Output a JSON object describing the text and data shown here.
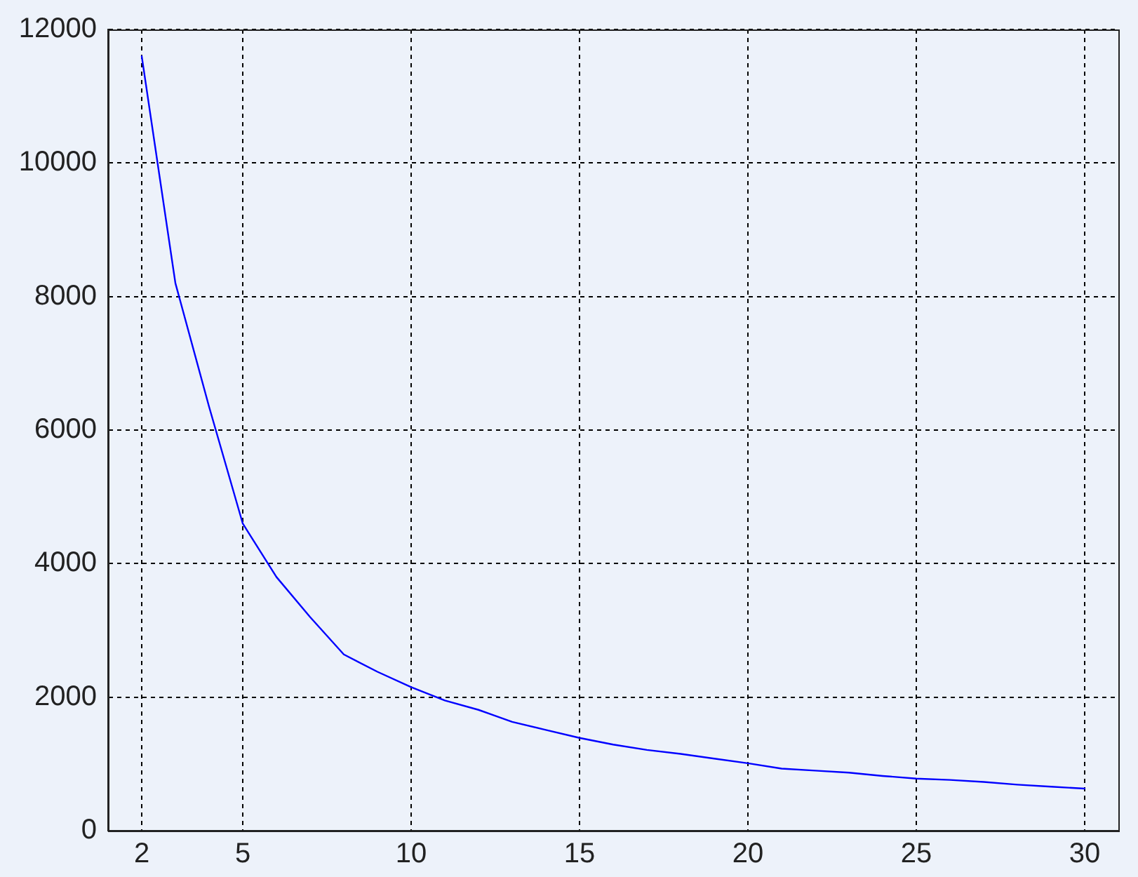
{
  "chart_data": {
    "type": "line",
    "x": [
      2,
      3,
      4,
      5,
      6,
      7,
      8,
      9,
      10,
      11,
      12,
      13,
      14,
      15,
      16,
      17,
      18,
      19,
      20,
      21,
      22,
      23,
      24,
      25,
      26,
      27,
      28,
      29,
      30
    ],
    "series": [
      {
        "color": "#0000ff",
        "values": [
          11600,
          8200,
          6350,
          4600,
          3800,
          3200,
          2640,
          2380,
          2150,
          1950,
          1810,
          1630,
          1510,
          1390,
          1290,
          1210,
          1150,
          1080,
          1010,
          930,
          900,
          870,
          820,
          780,
          760,
          730,
          690,
          660,
          630
        ]
      }
    ],
    "xlim": [
      1,
      31
    ],
    "xticks": [
      2,
      5,
      10,
      15,
      20,
      25,
      30
    ],
    "ylim": [
      0,
      12000
    ],
    "yticks": [
      0,
      2000,
      4000,
      6000,
      8000,
      10000,
      12000
    ],
    "grid": true,
    "line_style": "solid"
  }
}
